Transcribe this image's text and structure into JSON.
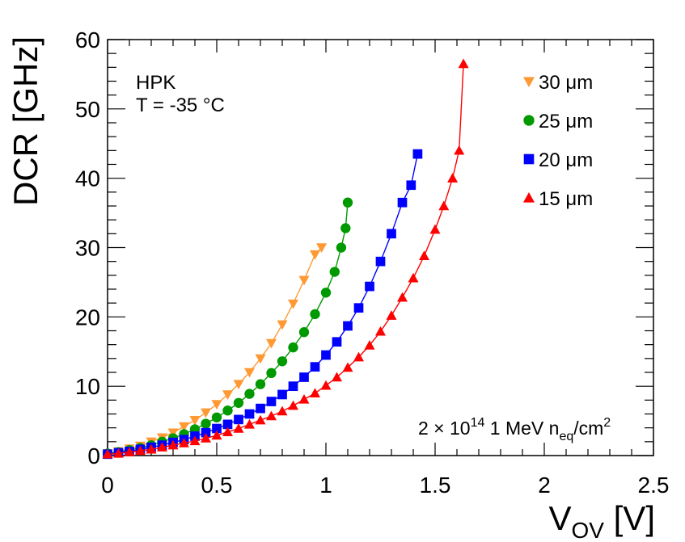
{
  "chart_data": {
    "type": "scatter",
    "ylabel": "DCR [GHz]",
    "xlabel": {
      "main": "V",
      "sub": "OV",
      "unit": " [V]"
    },
    "xlim": [
      0,
      2.5
    ],
    "ylim": [
      0,
      60
    ],
    "x_ticks": [
      0,
      0.5,
      1,
      1.5,
      2,
      2.5
    ],
    "x_tick_labels": [
      "0",
      "0.5",
      "1",
      "1.5",
      "2",
      "2.5"
    ],
    "y_ticks": [
      0,
      10,
      20,
      30,
      40,
      50,
      60
    ],
    "y_tick_labels": [
      "0",
      "10",
      "20",
      "30",
      "40",
      "50",
      "60"
    ],
    "grid": false,
    "legend_position": "top-right",
    "annotations": {
      "line1": "HPK",
      "line2": "T = -35 °C",
      "fluence": {
        "prefix": "2 × 10",
        "exp": "14",
        "mid": " 1 MeV n",
        "sub": "eq",
        "unit": "/cm",
        "unit_exp": "2"
      }
    },
    "series": [
      {
        "name": "30 μm",
        "label": "30 μm",
        "color": "#ff9933",
        "marker": "triangle-down",
        "x": [
          0,
          0.05,
          0.1,
          0.15,
          0.2,
          0.25,
          0.3,
          0.35,
          0.4,
          0.45,
          0.5,
          0.55,
          0.6,
          0.65,
          0.7,
          0.75,
          0.8,
          0.85,
          0.9,
          0.95,
          0.98
        ],
        "y": [
          0.3,
          0.6,
          1.0,
          1.4,
          2.0,
          2.6,
          3.3,
          4.2,
          5.1,
          6.2,
          7.4,
          8.8,
          10.3,
          12.0,
          14.0,
          16.2,
          18.9,
          21.9,
          25.3,
          29.0,
          30.0
        ]
      },
      {
        "name": "25 μm",
        "label": "25 μm",
        "color": "#009900",
        "marker": "circle",
        "x": [
          0,
          0.05,
          0.1,
          0.15,
          0.2,
          0.25,
          0.3,
          0.35,
          0.4,
          0.45,
          0.5,
          0.55,
          0.6,
          0.65,
          0.7,
          0.75,
          0.8,
          0.85,
          0.9,
          0.95,
          1.0,
          1.04,
          1.07,
          1.09,
          1.1
        ],
        "y": [
          0.3,
          0.5,
          0.8,
          1.1,
          1.5,
          2.0,
          2.5,
          3.1,
          3.8,
          4.6,
          5.5,
          6.5,
          7.6,
          8.9,
          10.3,
          11.9,
          13.6,
          15.6,
          17.8,
          20.4,
          23.5,
          26.5,
          30.0,
          32.8,
          36.5
        ]
      },
      {
        "name": "20 μm",
        "label": "20 μm",
        "color": "#0000ff",
        "marker": "square",
        "x": [
          0,
          0.05,
          0.1,
          0.15,
          0.2,
          0.25,
          0.3,
          0.35,
          0.4,
          0.45,
          0.5,
          0.55,
          0.6,
          0.65,
          0.7,
          0.75,
          0.8,
          0.85,
          0.9,
          0.95,
          1.0,
          1.05,
          1.1,
          1.15,
          1.2,
          1.25,
          1.3,
          1.35,
          1.39,
          1.42
        ],
        "y": [
          0.2,
          0.4,
          0.6,
          0.9,
          1.2,
          1.5,
          1.9,
          2.3,
          2.8,
          3.3,
          3.9,
          4.5,
          5.2,
          6.0,
          6.8,
          7.8,
          8.8,
          10.0,
          11.3,
          12.8,
          14.5,
          16.4,
          18.7,
          21.3,
          24.4,
          28.0,
          32.0,
          36.5,
          39.0,
          43.5
        ]
      },
      {
        "name": "15 μm",
        "label": "15 μm",
        "color": "#ff0000",
        "marker": "triangle-up",
        "x": [
          0,
          0.05,
          0.1,
          0.15,
          0.2,
          0.25,
          0.3,
          0.35,
          0.4,
          0.45,
          0.5,
          0.55,
          0.6,
          0.65,
          0.7,
          0.75,
          0.8,
          0.85,
          0.9,
          0.95,
          1.0,
          1.05,
          1.1,
          1.15,
          1.2,
          1.25,
          1.3,
          1.35,
          1.4,
          1.45,
          1.5,
          1.54,
          1.58,
          1.61,
          1.63
        ],
        "y": [
          0.2,
          0.3,
          0.5,
          0.7,
          0.9,
          1.2,
          1.5,
          1.8,
          2.1,
          2.5,
          2.9,
          3.4,
          3.9,
          4.5,
          5.1,
          5.7,
          6.4,
          7.2,
          8.1,
          9.0,
          10.1,
          11.3,
          12.7,
          14.2,
          15.9,
          17.9,
          20.2,
          22.8,
          25.6,
          28.8,
          32.6,
          36.0,
          40.0,
          44.0,
          56.5
        ]
      }
    ]
  }
}
